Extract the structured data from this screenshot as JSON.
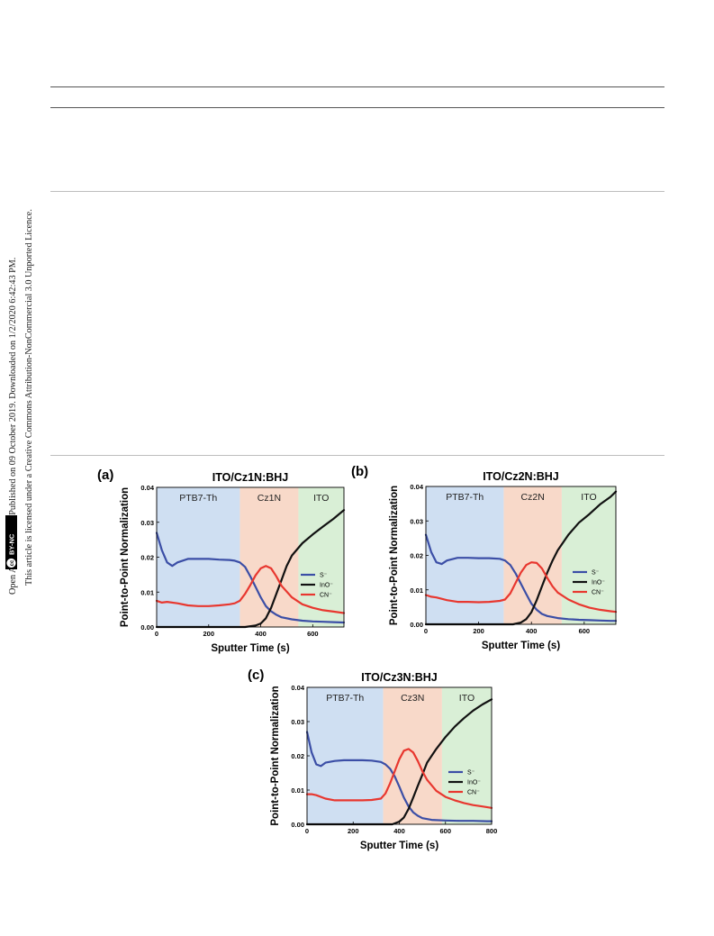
{
  "license": {
    "line1": "Open Access Article. Published on 09 October 2019. Downloaded on 1/2/2020 6:42:43 PM.",
    "line2": "This article is licensed under a Creative Commons Attribution-NonCommercial 3.0 Unported Licence.",
    "badge_cc": "cc",
    "badge_text": "BY-NC"
  },
  "colors": {
    "s": "#3b4ea6",
    "ino": "#111111",
    "cn": "#e8372f",
    "region_polymer": "#cfdff2",
    "region_interlayer": "#f8d9c9",
    "region_ito": "#d9efd6"
  },
  "chart_data": [
    {
      "panel": "(a)",
      "type": "line",
      "title": "ITO/Cz1N:BHJ",
      "xlabel": "Sputter Time (s)",
      "ylabel": "Point-to-Point Normalization",
      "xlim": [
        0,
        720
      ],
      "ylim": [
        0,
        0.04
      ],
      "xticks": [
        "0",
        "200",
        "400",
        "600"
      ],
      "xtick_values": [
        0,
        200,
        400,
        600
      ],
      "yticks": [
        "0.00",
        "0.01",
        "0.02",
        "0.03",
        "0.04"
      ],
      "ytick_values": [
        0,
        0.01,
        0.02,
        0.03,
        0.04
      ],
      "regions": [
        {
          "label": "PTB7-Th",
          "start": 0,
          "end": 320,
          "color_key": "region_polymer"
        },
        {
          "label": "Cz1N",
          "start": 320,
          "end": 545,
          "color_key": "region_interlayer"
        },
        {
          "label": "ITO",
          "start": 545,
          "end": 720,
          "color_key": "region_ito"
        }
      ],
      "legend": {
        "position": "right",
        "entries": [
          "S⁻",
          "InO⁻",
          "CN⁻"
        ]
      },
      "series": [
        {
          "name": "S⁻",
          "color_key": "s",
          "x": [
            0,
            20,
            40,
            60,
            80,
            120,
            160,
            200,
            240,
            280,
            300,
            320,
            340,
            360,
            380,
            400,
            420,
            440,
            460,
            480,
            520,
            560,
            600,
            640,
            680,
            720
          ],
          "y": [
            0.027,
            0.022,
            0.0185,
            0.0175,
            0.0185,
            0.0195,
            0.0195,
            0.0195,
            0.0193,
            0.0192,
            0.019,
            0.0185,
            0.0172,
            0.0145,
            0.0115,
            0.0085,
            0.006,
            0.0045,
            0.0035,
            0.0028,
            0.0022,
            0.0018,
            0.0016,
            0.0015,
            0.0014,
            0.0013
          ]
        },
        {
          "name": "InO⁻",
          "color_key": "ino",
          "x": [
            0,
            340,
            380,
            400,
            420,
            440,
            460,
            480,
            500,
            520,
            560,
            600,
            640,
            680,
            720
          ],
          "y": [
            0,
            0,
            0.0004,
            0.001,
            0.0025,
            0.0055,
            0.0095,
            0.0135,
            0.0175,
            0.0205,
            0.024,
            0.0265,
            0.0288,
            0.031,
            0.0335
          ]
        },
        {
          "name": "CN⁻",
          "color_key": "cn",
          "x": [
            0,
            20,
            40,
            80,
            120,
            160,
            200,
            240,
            280,
            300,
            320,
            340,
            360,
            380,
            400,
            420,
            440,
            460,
            480,
            520,
            560,
            600,
            640,
            680,
            720
          ],
          "y": [
            0.0075,
            0.007,
            0.0072,
            0.0068,
            0.0062,
            0.006,
            0.006,
            0.0062,
            0.0065,
            0.0068,
            0.0075,
            0.0095,
            0.012,
            0.0148,
            0.0168,
            0.0175,
            0.0168,
            0.0145,
            0.0118,
            0.0085,
            0.0065,
            0.0055,
            0.0048,
            0.0044,
            0.004
          ]
        }
      ]
    },
    {
      "panel": "(b)",
      "type": "line",
      "title": "ITO/Cz2N:BHJ",
      "xlabel": "Sputter Time (s)",
      "ylabel": "Point-to-Point Normalization",
      "xlim": [
        0,
        720
      ],
      "ylim": [
        0,
        0.04
      ],
      "xticks": [
        "0",
        "200",
        "400",
        "600"
      ],
      "xtick_values": [
        0,
        200,
        400,
        600
      ],
      "yticks": [
        "0.00",
        "0.01",
        "0.02",
        "0.03",
        "0.04"
      ],
      "ytick_values": [
        0,
        0.01,
        0.02,
        0.03,
        0.04
      ],
      "regions": [
        {
          "label": "PTB7-Th",
          "start": 0,
          "end": 295,
          "color_key": "region_polymer"
        },
        {
          "label": "Cz2N",
          "start": 295,
          "end": 515,
          "color_key": "region_interlayer"
        },
        {
          "label": "ITO",
          "start": 515,
          "end": 720,
          "color_key": "region_ito"
        }
      ],
      "legend": {
        "position": "right",
        "entries": [
          "S⁻",
          "InO⁻",
          "CN⁻"
        ]
      },
      "series": [
        {
          "name": "S⁻",
          "color_key": "s",
          "x": [
            0,
            20,
            40,
            60,
            80,
            120,
            160,
            200,
            240,
            280,
            300,
            320,
            340,
            360,
            380,
            400,
            420,
            440,
            460,
            500,
            540,
            580,
            620,
            660,
            700,
            720
          ],
          "y": [
            0.026,
            0.021,
            0.018,
            0.0175,
            0.0185,
            0.0193,
            0.0193,
            0.0192,
            0.0192,
            0.019,
            0.0185,
            0.0172,
            0.0148,
            0.0118,
            0.0088,
            0.006,
            0.0042,
            0.003,
            0.0024,
            0.0018,
            0.0015,
            0.0013,
            0.0012,
            0.0011,
            0.001,
            0.001
          ]
        },
        {
          "name": "InO⁻",
          "color_key": "ino",
          "x": [
            0,
            330,
            360,
            380,
            400,
            420,
            440,
            460,
            480,
            500,
            540,
            580,
            620,
            660,
            700,
            720
          ],
          "y": [
            0,
            0,
            0.0005,
            0.0015,
            0.0035,
            0.007,
            0.011,
            0.015,
            0.0185,
            0.0215,
            0.026,
            0.0295,
            0.032,
            0.0348,
            0.037,
            0.0385
          ]
        },
        {
          "name": "CN⁻",
          "color_key": "cn",
          "x": [
            0,
            20,
            40,
            80,
            120,
            160,
            200,
            240,
            280,
            300,
            320,
            340,
            360,
            380,
            400,
            420,
            440,
            460,
            480,
            500,
            540,
            580,
            620,
            660,
            700,
            720
          ],
          "y": [
            0.0085,
            0.008,
            0.0078,
            0.007,
            0.0065,
            0.0065,
            0.0064,
            0.0065,
            0.0068,
            0.0072,
            0.009,
            0.012,
            0.015,
            0.0172,
            0.018,
            0.0178,
            0.0162,
            0.0135,
            0.011,
            0.0092,
            0.0072,
            0.0058,
            0.0048,
            0.0042,
            0.0038,
            0.0036
          ]
        }
      ]
    },
    {
      "panel": "(c)",
      "type": "line",
      "title": "ITO/Cz3N:BHJ",
      "xlabel": "Sputter Time (s)",
      "ylabel": "Point-to-Point Normalization",
      "xlim": [
        0,
        800
      ],
      "ylim": [
        0,
        0.04
      ],
      "xticks": [
        "0",
        "200",
        "400",
        "600",
        "800"
      ],
      "xtick_values": [
        0,
        200,
        400,
        600,
        800
      ],
      "yticks": [
        "0.00",
        "0.01",
        "0.02",
        "0.03",
        "0.04"
      ],
      "ytick_values": [
        0,
        0.01,
        0.02,
        0.03,
        0.04
      ],
      "regions": [
        {
          "label": "PTB7-Th",
          "start": 0,
          "end": 330,
          "color_key": "region_polymer"
        },
        {
          "label": "Cz3N",
          "start": 330,
          "end": 585,
          "color_key": "region_interlayer"
        },
        {
          "label": "ITO",
          "start": 585,
          "end": 800,
          "color_key": "region_ito"
        }
      ],
      "legend": {
        "position": "right",
        "entries": [
          "S⁻",
          "InO⁻",
          "CN⁻"
        ]
      },
      "series": [
        {
          "name": "S⁻",
          "color_key": "s",
          "x": [
            0,
            20,
            40,
            60,
            80,
            120,
            160,
            200,
            240,
            280,
            320,
            340,
            360,
            380,
            400,
            420,
            440,
            460,
            480,
            500,
            540,
            600,
            660,
            720,
            780,
            800
          ],
          "y": [
            0.027,
            0.021,
            0.0175,
            0.017,
            0.018,
            0.0185,
            0.0187,
            0.0187,
            0.0187,
            0.0186,
            0.0182,
            0.0175,
            0.0162,
            0.014,
            0.011,
            0.0078,
            0.0052,
            0.0035,
            0.0025,
            0.0018,
            0.0013,
            0.0011,
            0.001,
            0.001,
            0.0009,
            0.0009
          ]
        },
        {
          "name": "InO⁻",
          "color_key": "ino",
          "x": [
            0,
            370,
            400,
            420,
            440,
            460,
            480,
            500,
            520,
            560,
            600,
            640,
            680,
            720,
            760,
            800
          ],
          "y": [
            0,
            0,
            0.0008,
            0.002,
            0.0045,
            0.0078,
            0.0112,
            0.0145,
            0.018,
            0.022,
            0.0255,
            0.0285,
            0.031,
            0.0332,
            0.035,
            0.0365
          ]
        },
        {
          "name": "CN⁻",
          "color_key": "cn",
          "x": [
            0,
            20,
            40,
            80,
            120,
            160,
            200,
            240,
            280,
            320,
            340,
            360,
            380,
            400,
            420,
            440,
            460,
            480,
            500,
            520,
            560,
            600,
            640,
            680,
            720,
            760,
            800
          ],
          "y": [
            0.0088,
            0.0088,
            0.0085,
            0.0075,
            0.007,
            0.007,
            0.007,
            0.007,
            0.0071,
            0.0075,
            0.009,
            0.012,
            0.0155,
            0.019,
            0.0215,
            0.022,
            0.021,
            0.0185,
            0.0155,
            0.013,
            0.0098,
            0.008,
            0.007,
            0.0062,
            0.0056,
            0.0052,
            0.0048
          ]
        }
      ]
    }
  ]
}
